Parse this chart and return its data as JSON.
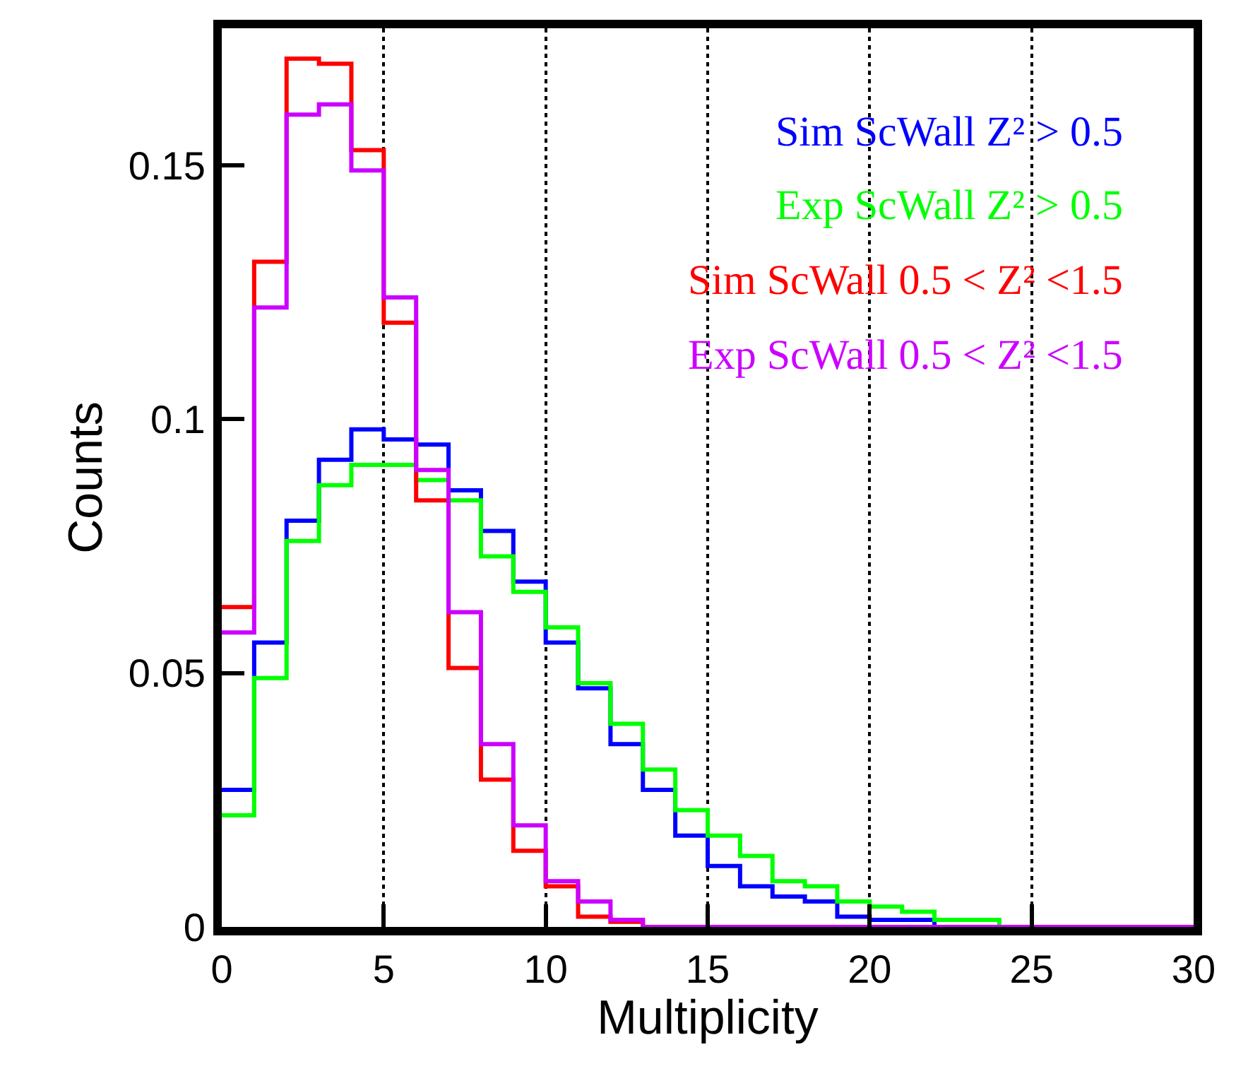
{
  "chart_data": {
    "type": "histogram",
    "xlabel": "Multiplicity",
    "ylabel": "Counts",
    "bins": [
      0,
      1,
      2,
      3,
      4,
      5,
      6,
      7,
      8,
      9,
      10,
      11,
      12,
      13,
      14,
      15,
      16,
      17,
      18,
      19,
      20,
      21,
      22,
      23,
      24,
      25,
      26,
      27,
      28,
      29,
      30
    ],
    "series": [
      {
        "name": "Sim ScWall Z² > 0.5",
        "color": "#0000ff",
        "values": [
          0.027,
          0.056,
          0.08,
          0.092,
          0.098,
          0.096,
          0.095,
          0.086,
          0.078,
          0.068,
          0.056,
          0.047,
          0.036,
          0.027,
          0.018,
          0.012,
          0.008,
          0.006,
          0.005,
          0.002,
          0.0014,
          0.0014,
          0,
          0,
          0,
          0,
          0,
          0,
          0,
          0
        ]
      },
      {
        "name": "Exp ScWall Z² > 0.5",
        "color": "#00ff00",
        "values": [
          0.022,
          0.049,
          0.076,
          0.087,
          0.091,
          0.091,
          0.088,
          0.084,
          0.073,
          0.066,
          0.059,
          0.048,
          0.04,
          0.031,
          0.023,
          0.018,
          0.014,
          0.009,
          0.008,
          0.005,
          0.004,
          0.003,
          0.0014,
          0.0014,
          0,
          0,
          0,
          0,
          0,
          0
        ]
      },
      {
        "name": "Sim ScWall 0.5 < Z² <1.5",
        "color": "#ff0000",
        "values": [
          0.063,
          0.131,
          0.171,
          0.17,
          0.153,
          0.119,
          0.084,
          0.051,
          0.029,
          0.015,
          0.008,
          0.002,
          0.001,
          0,
          0,
          0,
          0,
          0,
          0,
          0,
          0,
          0,
          0,
          0,
          0,
          0,
          0,
          0,
          0,
          0
        ]
      },
      {
        "name": "Exp ScWall 0.5 < Z² <1.5",
        "color": "#cc00ff",
        "values": [
          0.058,
          0.122,
          0.16,
          0.162,
          0.149,
          0.124,
          0.09,
          0.062,
          0.036,
          0.02,
          0.009,
          0.005,
          0.0014,
          0,
          0,
          0,
          0,
          0,
          0,
          0,
          0,
          0,
          0,
          0,
          0,
          0,
          0,
          0,
          0,
          0
        ]
      }
    ],
    "xlim": [
      0,
      30
    ],
    "xticks": [
      0,
      5,
      10,
      15,
      20,
      25,
      30
    ],
    "ylim": [
      0,
      0.177
    ],
    "yticks": [
      0,
      0.05,
      0.1,
      0.15
    ],
    "grid": "x",
    "legend": "top right"
  }
}
